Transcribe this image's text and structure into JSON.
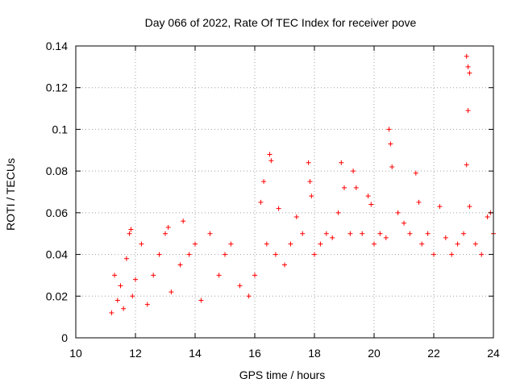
{
  "chart_data": {
    "type": "scatter",
    "title": "Day 066 of 2022, Rate Of TEC Index for receiver pove",
    "xlabel": "GPS time / hours",
    "ylabel": "ROTI / TECUs",
    "xlim": [
      10,
      24
    ],
    "ylim": [
      0,
      0.14
    ],
    "x_ticks": [
      10,
      12,
      14,
      16,
      18,
      20,
      22,
      24
    ],
    "y_ticks": [
      0,
      0.02,
      0.04,
      0.06,
      0.08,
      0.1,
      0.12,
      0.14
    ],
    "y_tick_labels": [
      "0",
      "0.02",
      "0.04",
      "0.06",
      "0.08",
      "0.1",
      "0.12",
      "0.14"
    ],
    "grid": true,
    "marker": "+",
    "color": "#ff0000",
    "series": [
      {
        "name": "ROTI",
        "points": [
          [
            11.2,
            0.012
          ],
          [
            11.3,
            0.03
          ],
          [
            11.4,
            0.018
          ],
          [
            11.5,
            0.025
          ],
          [
            11.6,
            0.014
          ],
          [
            11.7,
            0.038
          ],
          [
            11.8,
            0.05
          ],
          [
            11.85,
            0.052
          ],
          [
            11.9,
            0.02
          ],
          [
            12.0,
            0.028
          ],
          [
            12.2,
            0.045
          ],
          [
            12.4,
            0.016
          ],
          [
            12.6,
            0.03
          ],
          [
            12.8,
            0.04
          ],
          [
            13.0,
            0.05
          ],
          [
            13.1,
            0.053
          ],
          [
            13.2,
            0.022
          ],
          [
            13.5,
            0.035
          ],
          [
            13.6,
            0.056
          ],
          [
            13.8,
            0.04
          ],
          [
            14.0,
            0.045
          ],
          [
            14.2,
            0.018
          ],
          [
            14.5,
            0.05
          ],
          [
            14.8,
            0.03
          ],
          [
            15.0,
            0.04
          ],
          [
            15.2,
            0.045
          ],
          [
            15.5,
            0.025
          ],
          [
            15.8,
            0.02
          ],
          [
            16.0,
            0.03
          ],
          [
            16.2,
            0.065
          ],
          [
            16.3,
            0.075
          ],
          [
            16.4,
            0.045
          ],
          [
            16.5,
            0.088
          ],
          [
            16.55,
            0.085
          ],
          [
            16.7,
            0.04
          ],
          [
            16.8,
            0.062
          ],
          [
            17.0,
            0.035
          ],
          [
            17.2,
            0.045
          ],
          [
            17.4,
            0.058
          ],
          [
            17.6,
            0.05
          ],
          [
            17.8,
            0.084
          ],
          [
            17.85,
            0.075
          ],
          [
            17.9,
            0.068
          ],
          [
            18.0,
            0.04
          ],
          [
            18.2,
            0.045
          ],
          [
            18.4,
            0.05
          ],
          [
            18.6,
            0.048
          ],
          [
            18.8,
            0.06
          ],
          [
            18.9,
            0.084
          ],
          [
            19.0,
            0.072
          ],
          [
            19.2,
            0.05
          ],
          [
            19.3,
            0.08
          ],
          [
            19.4,
            0.072
          ],
          [
            19.6,
            0.05
          ],
          [
            19.8,
            0.068
          ],
          [
            19.9,
            0.064
          ],
          [
            20.0,
            0.045
          ],
          [
            20.2,
            0.05
          ],
          [
            20.4,
            0.048
          ],
          [
            20.5,
            0.1
          ],
          [
            20.55,
            0.093
          ],
          [
            20.6,
            0.082
          ],
          [
            20.8,
            0.06
          ],
          [
            21.0,
            0.055
          ],
          [
            21.2,
            0.05
          ],
          [
            21.4,
            0.079
          ],
          [
            21.5,
            0.065
          ],
          [
            21.6,
            0.045
          ],
          [
            21.8,
            0.05
          ],
          [
            22.0,
            0.04
          ],
          [
            22.2,
            0.063
          ],
          [
            22.4,
            0.048
          ],
          [
            22.6,
            0.04
          ],
          [
            22.8,
            0.045
          ],
          [
            23.0,
            0.05
          ],
          [
            23.1,
            0.135
          ],
          [
            23.15,
            0.13
          ],
          [
            23.2,
            0.127
          ],
          [
            23.15,
            0.109
          ],
          [
            23.1,
            0.083
          ],
          [
            23.2,
            0.063
          ],
          [
            23.4,
            0.045
          ],
          [
            23.6,
            0.04
          ],
          [
            23.8,
            0.058
          ],
          [
            23.9,
            0.06
          ],
          [
            24.0,
            0.05
          ]
        ]
      }
    ]
  }
}
